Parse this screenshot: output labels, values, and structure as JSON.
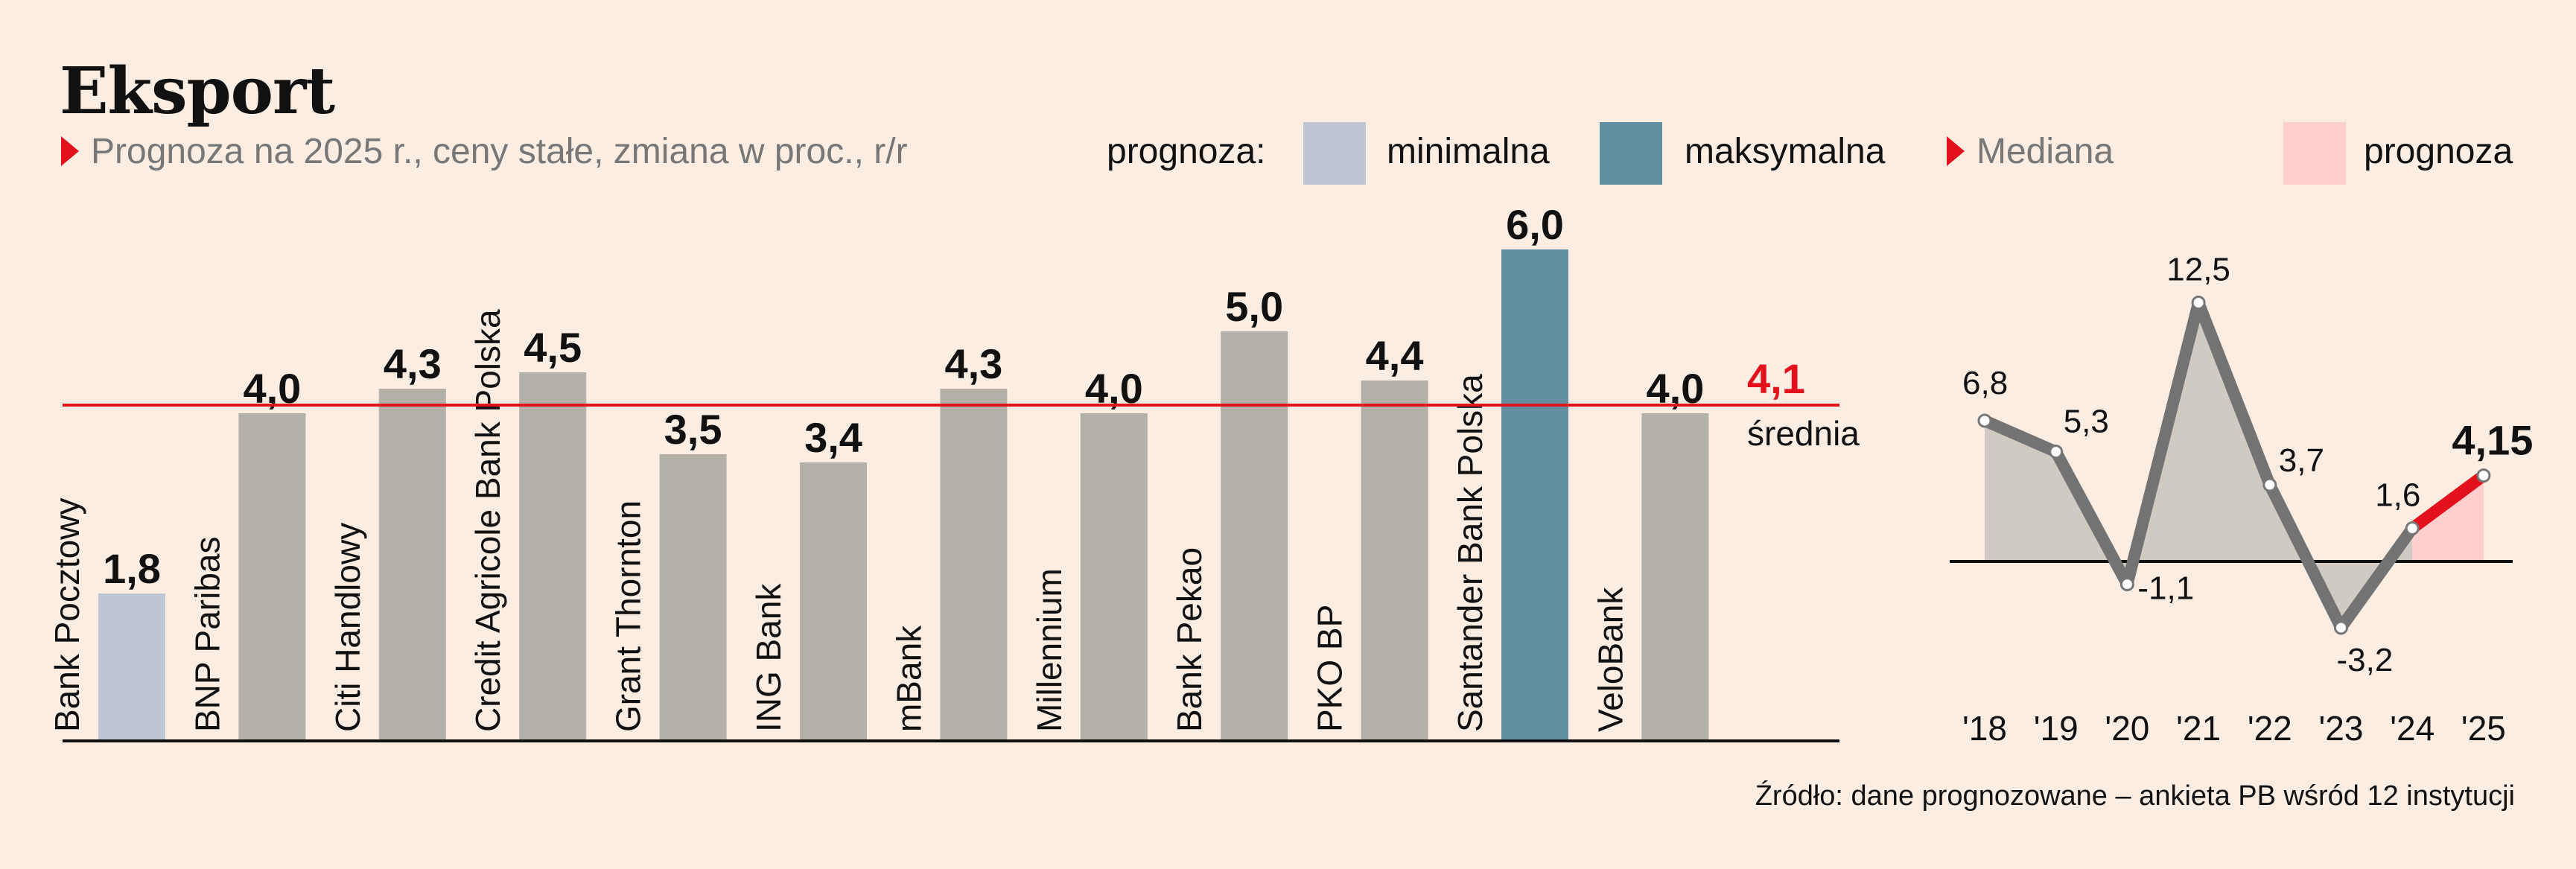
{
  "title": "Eksport",
  "subtitle": "Prognoza na 2025 r., ceny stałe, zmiana w proc., r/r",
  "legend": {
    "label": "prognoza:",
    "min_label": "minimalna",
    "max_label": "maksymalna",
    "median_label": "Mediana",
    "forecast_label": "prognoza"
  },
  "colors": {
    "background": "#fbede1",
    "bar_regular": "#b2b0a7",
    "bar_min": "#bec5d6",
    "bar_max": "#628fa0",
    "average_line": "#e3111b",
    "median_line": "#737373",
    "median_area": "#cfcbc2",
    "forecast_area": "#ffcfcf",
    "forecast_line": "#e3111b"
  },
  "source": "Źródło: dane prognozowane – ankieta PB wśród 12 instytucji",
  "chart_data": [
    {
      "type": "bar",
      "categories": [
        "Bank Pocztowy",
        "BNP Paribas",
        "Citi Handlowy",
        "Credit Agricole Bank Polska",
        "Grant Thornton",
        "ING Bank",
        "mBank",
        "Millennium",
        "Bank Pekao",
        "PKO BP",
        "Santander Bank Polska",
        "VeloBank"
      ],
      "values": [
        1.8,
        4.0,
        4.3,
        4.5,
        3.5,
        3.4,
        4.3,
        4.0,
        5.0,
        4.4,
        6.0,
        4.0
      ],
      "value_labels": [
        "1,8",
        "4,0",
        "4,3",
        "4,5",
        "3,5",
        "3,4",
        "4,3",
        "4,0",
        "5,0",
        "4,4",
        "6,0",
        "4,0"
      ],
      "highlight": {
        "min": "Bank Pocztowy",
        "max": "Santander Bank Polska"
      },
      "average": {
        "value": 4.1,
        "label": "4,1",
        "text": "średnia"
      },
      "ylim": [
        0,
        6.0
      ]
    },
    {
      "type": "line",
      "x": [
        "'18",
        "'19",
        "'20",
        "'21",
        "'22",
        "'23",
        "'24",
        "'25"
      ],
      "values": [
        6.8,
        5.3,
        -1.1,
        12.5,
        3.7,
        -3.2,
        1.6,
        4.15
      ],
      "value_labels": [
        "6,8",
        "5,3",
        "-1,1",
        "12,5",
        "3,7",
        "-3,2",
        "1,6",
        "4,15"
      ],
      "forecast_from_index": 6,
      "ylim": [
        -3.2,
        12.5
      ]
    }
  ]
}
